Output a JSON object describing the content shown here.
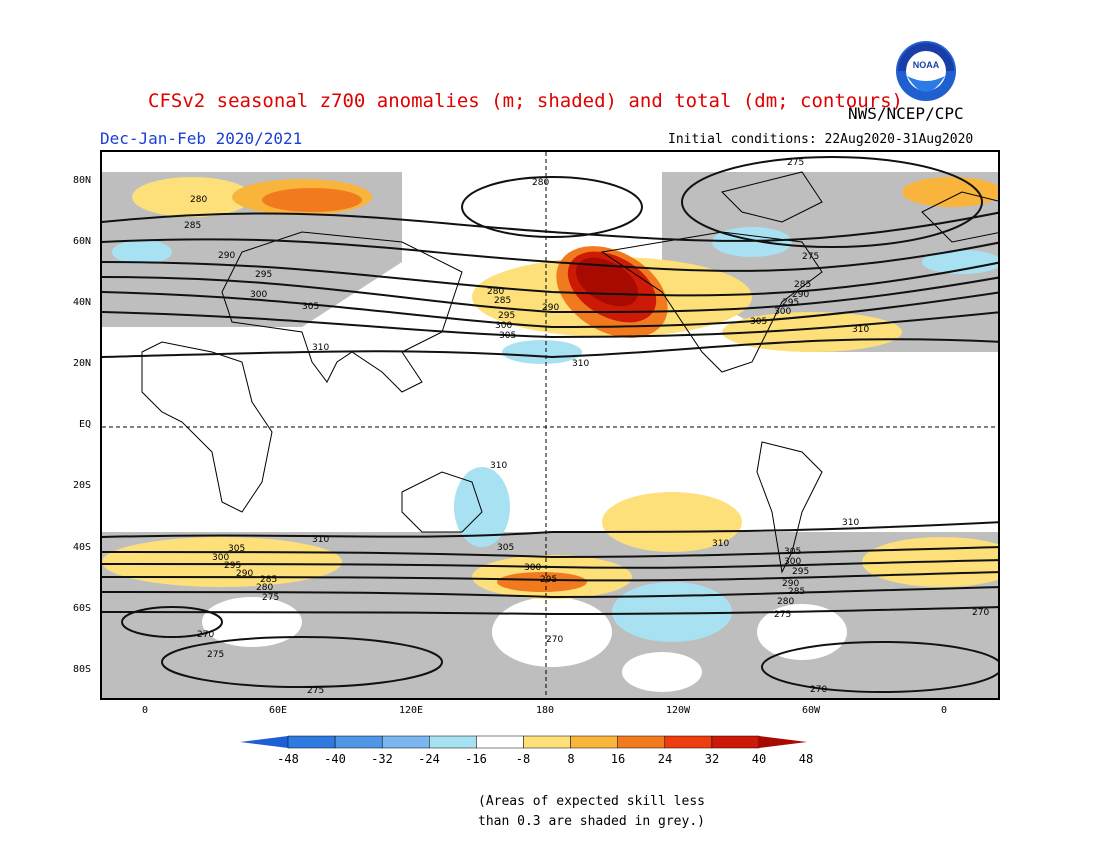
{
  "title": "CFSv2 seasonal z700 anomalies (m; shaded) and total (dm; contours)",
  "agency": "NWS/NCEP/CPC",
  "logo_text": "NOAA",
  "season": "Dec-Jan-Feb 2020/2021",
  "initial_conditions": "Initial conditions: 22Aug2020-31Aug2020",
  "lat_labels": [
    "80N",
    "60N",
    "40N",
    "20N",
    "EQ",
    "20S",
    "40S",
    "60S",
    "80S"
  ],
  "lon_labels": [
    "0",
    "60E",
    "120E",
    "180",
    "120W",
    "60W",
    "0"
  ],
  "colorbar": {
    "labels": [
      "-48",
      "-40",
      "-32",
      "-24",
      "-16",
      "-8",
      "8",
      "16",
      "24",
      "32",
      "40",
      "48"
    ],
    "colors": [
      "#1e5fd6",
      "#2f7ae0",
      "#4f96e6",
      "#7ab6f0",
      "#a8e2f2",
      "#ffffff",
      "#fde07a",
      "#f9b43c",
      "#f27a1e",
      "#ee3d0f",
      "#cc1a06",
      "#a80a02"
    ]
  },
  "skill_note": [
    "(Areas of expected skill less",
    "than 0.3 are shaded in grey.)"
  ],
  "contour_labels": {
    "n_270": "270",
    "n_275": "275",
    "n_280": "280",
    "n_285": "285",
    "n_290": "290",
    "n_295": "295",
    "n_300": "300",
    "n_305": "305",
    "n_310": "310"
  },
  "colors": {
    "grey_skill": "#bebebe",
    "title_red": "#e00000",
    "season_blue": "#1a3fd6"
  }
}
